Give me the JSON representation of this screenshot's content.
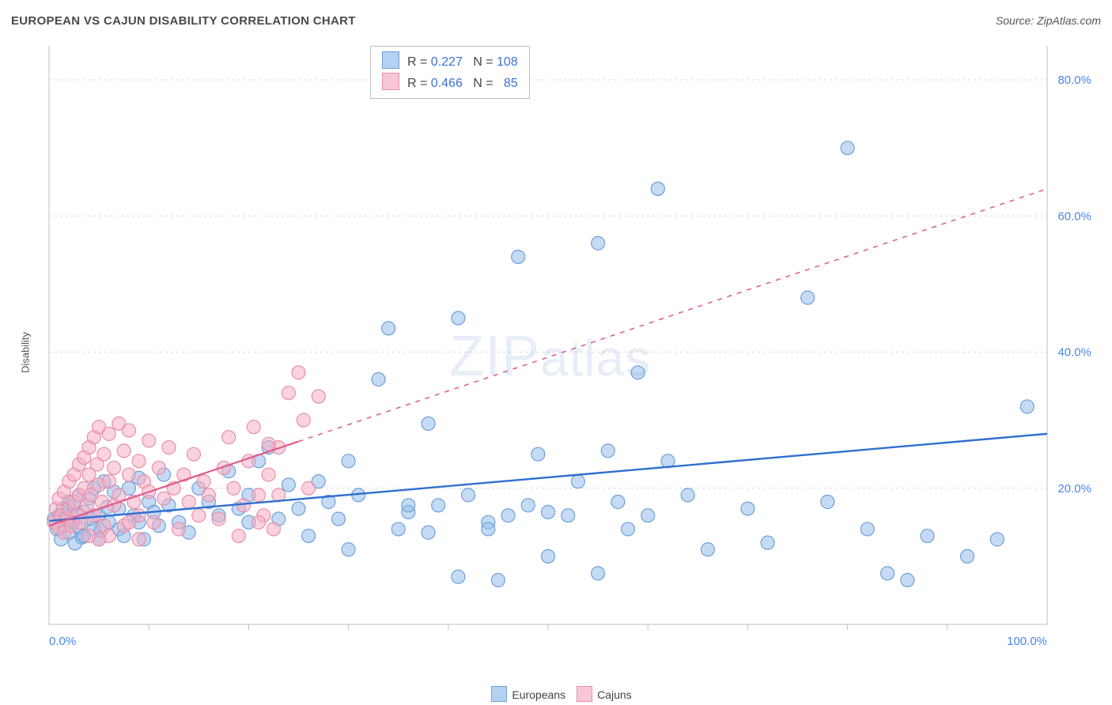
{
  "header": {
    "title": "EUROPEAN VS CAJUN DISABILITY CORRELATION CHART",
    "source": "Source: ZipAtlas.com"
  },
  "ylabel": "Disability",
  "watermark": {
    "big": "ZIP",
    "small": "atlas"
  },
  "chart": {
    "type": "scatter",
    "xlim": [
      0,
      100
    ],
    "ylim": [
      0,
      85
    ],
    "x_ticks_minor": [
      10,
      20,
      30,
      40,
      50,
      60,
      70,
      80,
      90
    ],
    "x_ticks_label": [
      {
        "v": 0,
        "t": "0.0%",
        "anchor": "start"
      },
      {
        "v": 100,
        "t": "100.0%",
        "anchor": "end"
      }
    ],
    "y_ticks": [
      {
        "v": 20,
        "t": "20.0%"
      },
      {
        "v": 40,
        "t": "40.0%"
      },
      {
        "v": 60,
        "t": "60.0%"
      },
      {
        "v": 80,
        "t": "80.0%"
      }
    ],
    "grid_color": "#d9d9d9",
    "grid_dash": "3,4",
    "axis_color": "#bfbfbf",
    "background_color": "#ffffff",
    "marker_radius": 8.5,
    "marker_stroke_width": 1.2,
    "series": [
      {
        "name": "Europeans",
        "fill": "rgba(150,190,235,0.55)",
        "stroke": "#6fa0d8",
        "trend": {
          "color": "#2f6fd0",
          "width": 2.4,
          "x1": 0,
          "y1": 15.2,
          "x2": 100,
          "y2": 28.0,
          "dash_after_x": null
        },
        "points": [
          [
            0.5,
            15.5
          ],
          [
            0.8,
            14
          ],
          [
            1,
            16
          ],
          [
            1.2,
            12.5
          ],
          [
            1.4,
            17
          ],
          [
            1.5,
            14.5
          ],
          [
            1.7,
            15.8
          ],
          [
            2,
            13.5
          ],
          [
            2,
            18
          ],
          [
            2.2,
            16.2
          ],
          [
            2.4,
            15
          ],
          [
            2.5,
            17.5
          ],
          [
            2.6,
            11.9
          ],
          [
            3,
            14.2
          ],
          [
            3,
            19
          ],
          [
            3.3,
            12.8
          ],
          [
            3.5,
            16.5
          ],
          [
            3.5,
            13
          ],
          [
            4,
            18.5
          ],
          [
            4.2,
            15.5
          ],
          [
            4.5,
            14
          ],
          [
            4.5,
            20
          ],
          [
            5,
            16
          ],
          [
            5,
            12.5
          ],
          [
            5.2,
            13.8
          ],
          [
            5.5,
            21
          ],
          [
            5.8,
            17.2
          ],
          [
            6,
            15
          ],
          [
            6.5,
            19.5
          ],
          [
            7,
            14
          ],
          [
            7,
            17
          ],
          [
            7.5,
            13
          ],
          [
            8,
            20
          ],
          [
            8.5,
            16
          ],
          [
            9,
            15
          ],
          [
            9,
            21.5
          ],
          [
            9.5,
            12.5
          ],
          [
            10,
            18
          ],
          [
            10.5,
            16.5
          ],
          [
            11,
            14.5
          ],
          [
            11.5,
            22
          ],
          [
            12,
            17.5
          ],
          [
            13,
            15
          ],
          [
            14,
            13.5
          ],
          [
            15,
            20
          ],
          [
            16,
            18
          ],
          [
            17,
            16
          ],
          [
            18,
            22.5
          ],
          [
            19,
            17
          ],
          [
            20,
            19
          ],
          [
            20,
            15
          ],
          [
            21,
            24
          ],
          [
            22,
            26
          ],
          [
            23,
            15.5
          ],
          [
            24,
            20.5
          ],
          [
            25,
            17
          ],
          [
            26,
            13
          ],
          [
            27,
            21
          ],
          [
            28,
            18
          ],
          [
            29,
            15.5
          ],
          [
            30,
            24
          ],
          [
            30,
            11
          ],
          [
            31,
            19
          ],
          [
            33,
            36
          ],
          [
            34,
            43.5
          ],
          [
            35,
            14
          ],
          [
            36,
            16.5
          ],
          [
            38,
            29.5
          ],
          [
            38,
            13.5
          ],
          [
            39,
            17.5
          ],
          [
            41,
            45
          ],
          [
            41,
            7
          ],
          [
            42,
            19
          ],
          [
            44,
            15
          ],
          [
            45,
            6.5
          ],
          [
            46,
            16
          ],
          [
            47,
            54
          ],
          [
            48,
            17.5
          ],
          [
            49,
            25
          ],
          [
            50,
            10
          ],
          [
            52,
            16
          ],
          [
            53,
            21
          ],
          [
            55,
            56
          ],
          [
            55,
            7.5
          ],
          [
            56,
            25.5
          ],
          [
            57,
            18
          ],
          [
            58,
            14
          ],
          [
            59,
            37
          ],
          [
            60,
            16
          ],
          [
            61,
            64
          ],
          [
            62,
            24
          ],
          [
            64,
            19
          ],
          [
            66,
            11
          ],
          [
            70,
            17
          ],
          [
            72,
            12
          ],
          [
            76,
            48
          ],
          [
            78,
            18
          ],
          [
            80,
            70
          ],
          [
            82,
            14
          ],
          [
            84,
            7.5
          ],
          [
            88,
            13
          ],
          [
            92,
            10
          ],
          [
            95,
            12.5
          ],
          [
            98,
            32
          ],
          [
            86,
            6.5
          ],
          [
            50,
            16.5
          ],
          [
            44,
            14
          ],
          [
            36,
            17.5
          ]
        ]
      },
      {
        "name": "Cajuns",
        "fill": "rgba(245,175,195,0.55)",
        "stroke": "#e78fab",
        "trend": {
          "color": "#e15a8a",
          "width": 2.2,
          "x1": 0,
          "y1": 14.5,
          "x2": 100,
          "y2": 64.0,
          "dash_after_x": 25
        },
        "points": [
          [
            0.5,
            15
          ],
          [
            0.7,
            17
          ],
          [
            1,
            14.2
          ],
          [
            1,
            18.5
          ],
          [
            1.2,
            16
          ],
          [
            1.5,
            13.5
          ],
          [
            1.5,
            19.5
          ],
          [
            1.8,
            15.5
          ],
          [
            2,
            21
          ],
          [
            2,
            17
          ],
          [
            2.2,
            14.5
          ],
          [
            2.5,
            22
          ],
          [
            2.5,
            18
          ],
          [
            2.8,
            16
          ],
          [
            3,
            23.5
          ],
          [
            3,
            19
          ],
          [
            3.2,
            15
          ],
          [
            3.5,
            24.5
          ],
          [
            3.5,
            20
          ],
          [
            3.8,
            17.5
          ],
          [
            4,
            26
          ],
          [
            4,
            22
          ],
          [
            4.2,
            19
          ],
          [
            4.5,
            27.5
          ],
          [
            4.5,
            16
          ],
          [
            4.8,
            23.5
          ],
          [
            5,
            29
          ],
          [
            5,
            20.5
          ],
          [
            5.3,
            18
          ],
          [
            5.5,
            25
          ],
          [
            5.5,
            14.5
          ],
          [
            6,
            28
          ],
          [
            6,
            21
          ],
          [
            6.5,
            17.5
          ],
          [
            6.5,
            23
          ],
          [
            7,
            29.5
          ],
          [
            7,
            19
          ],
          [
            7.5,
            14.5
          ],
          [
            7.5,
            25.5
          ],
          [
            8,
            22
          ],
          [
            8,
            28.5
          ],
          [
            8.5,
            18
          ],
          [
            9,
            24
          ],
          [
            9,
            16
          ],
          [
            9.5,
            21
          ],
          [
            10,
            27
          ],
          [
            10,
            19.5
          ],
          [
            10.5,
            15
          ],
          [
            11,
            23
          ],
          [
            11.5,
            18.5
          ],
          [
            12,
            26
          ],
          [
            12.5,
            20
          ],
          [
            13,
            14
          ],
          [
            13.5,
            22
          ],
          [
            14,
            18
          ],
          [
            14.5,
            25
          ],
          [
            15,
            16
          ],
          [
            15.5,
            21
          ],
          [
            16,
            19
          ],
          [
            17,
            15.5
          ],
          [
            17.5,
            23
          ],
          [
            18,
            27.5
          ],
          [
            18.5,
            20
          ],
          [
            19,
            13
          ],
          [
            19.5,
            17.5
          ],
          [
            20,
            24
          ],
          [
            20.5,
            29
          ],
          [
            21,
            19
          ],
          [
            21.5,
            16
          ],
          [
            22,
            22
          ],
          [
            22.5,
            14
          ],
          [
            23,
            26
          ],
          [
            24,
            34
          ],
          [
            25,
            37
          ],
          [
            25.5,
            30
          ],
          [
            26,
            20
          ],
          [
            27,
            33.5
          ],
          [
            23,
            19
          ],
          [
            22,
            26.5
          ],
          [
            21,
            15
          ],
          [
            9,
            12.5
          ],
          [
            8,
            15
          ],
          [
            6,
            13
          ],
          [
            5,
            12.5
          ],
          [
            4,
            13
          ]
        ]
      }
    ]
  },
  "stat_legend": {
    "rows": [
      {
        "swatch_fill": "rgba(150,190,235,0.7)",
        "swatch_border": "#6fa0d8",
        "r_label": "R =",
        "r_val": "0.227",
        "n_label": "N =",
        "n_val": "108"
      },
      {
        "swatch_fill": "rgba(245,175,195,0.7)",
        "swatch_border": "#e78fab",
        "r_label": "R =",
        "r_val": "0.466",
        "n_label": "N =",
        "n_val": "  85"
      }
    ]
  },
  "bottom_legend": {
    "items": [
      {
        "fill": "rgba(150,190,235,0.7)",
        "border": "#6fa0d8",
        "label": "Europeans"
      },
      {
        "fill": "rgba(245,175,195,0.7)",
        "border": "#e78fab",
        "label": "Cajuns"
      }
    ]
  }
}
